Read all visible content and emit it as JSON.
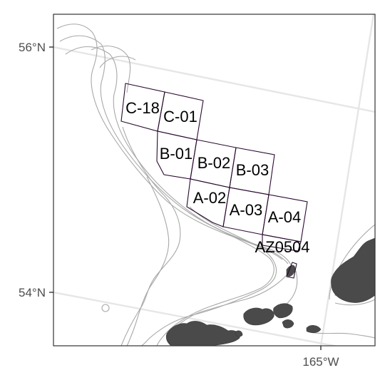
{
  "map": {
    "lat_labels": [
      "56°N",
      "54°N"
    ],
    "lon_labels": [
      "165°W"
    ],
    "grid_cells": [
      {
        "id": "C-18"
      },
      {
        "id": "C-01"
      },
      {
        "id": "B-01"
      },
      {
        "id": "B-02"
      },
      {
        "id": "B-03"
      },
      {
        "id": "A-02"
      },
      {
        "id": "A-03"
      },
      {
        "id": "A-04"
      },
      {
        "id": "AZ0504"
      }
    ],
    "colors": {
      "land": "#4a4a4a",
      "contour": "#a8a8a8",
      "graticule": "#e6e6e6",
      "cell_outline": "#2a0a30"
    }
  }
}
